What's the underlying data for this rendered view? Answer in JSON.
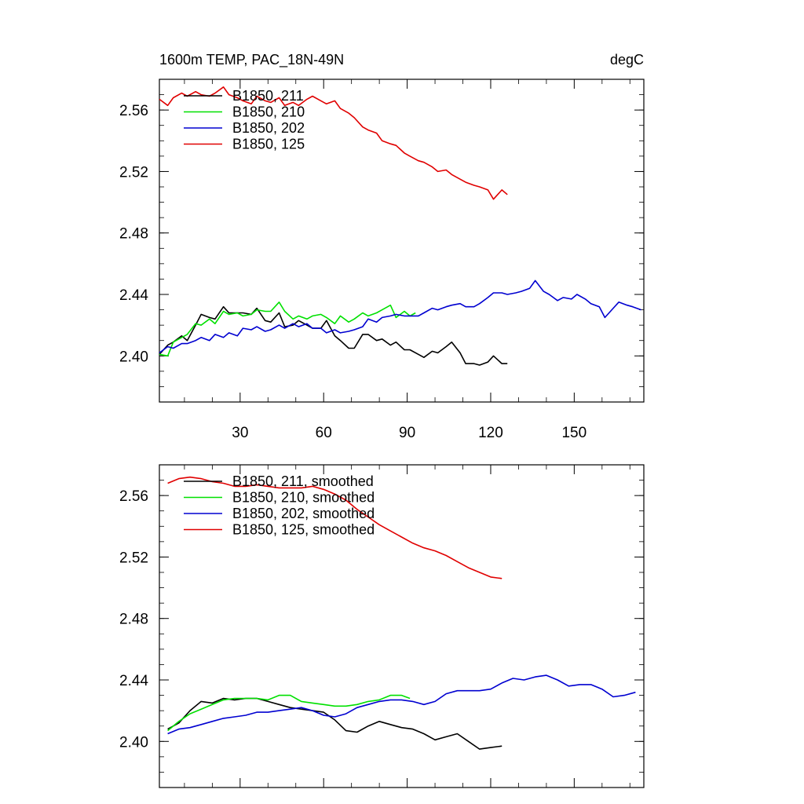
{
  "colors": {
    "run211": "#000000",
    "run210": "#00e000",
    "run202": "#0000d0",
    "run125": "#e00000"
  },
  "header": {
    "title_left": "1600m TEMP, PAC_18N-49N",
    "title_right": "degC"
  },
  "chart_data": [
    {
      "type": "line",
      "title": "1600m TEMP, PAC_18N-49N",
      "unit": "degC",
      "xlim": [
        1,
        175
      ],
      "ylim": [
        2.37,
        2.58
      ],
      "xticks": [
        30,
        60,
        90,
        120,
        150
      ],
      "xtick_labels": [
        "30",
        "60",
        "90",
        "120",
        "150"
      ],
      "yticks": [
        2.4,
        2.44,
        2.48,
        2.52,
        2.56
      ],
      "ytick_labels": [
        "2.40",
        "2.44",
        "2.48",
        "2.52",
        "2.56"
      ],
      "legend_position": "top-left",
      "series": [
        {
          "name": "B1850, 211",
          "color_key": "run211",
          "x": [
            1,
            4,
            6,
            9,
            11,
            14,
            16,
            19,
            21,
            24,
            26,
            29,
            31,
            34,
            36,
            39,
            41,
            44,
            46,
            49,
            51,
            54,
            56,
            59,
            61,
            64,
            66,
            69,
            71,
            74,
            76,
            79,
            81,
            84,
            86,
            89,
            91,
            94,
            96,
            99,
            101,
            104,
            106,
            109,
            111,
            114,
            116,
            119,
            121,
            124,
            126
          ],
          "y": [
            2.401,
            2.407,
            2.409,
            2.413,
            2.41,
            2.42,
            2.427,
            2.425,
            2.424,
            2.432,
            2.428,
            2.428,
            2.428,
            2.427,
            2.431,
            2.423,
            2.422,
            2.428,
            2.419,
            2.42,
            2.423,
            2.42,
            2.418,
            2.418,
            2.423,
            2.413,
            2.41,
            2.405,
            2.405,
            2.414,
            2.414,
            2.41,
            2.411,
            2.407,
            2.409,
            2.404,
            2.404,
            2.401,
            2.399,
            2.403,
            2.402,
            2.406,
            2.409,
            2.402,
            2.395,
            2.395,
            2.394,
            2.396,
            2.4,
            2.395,
            2.395
          ]
        },
        {
          "name": "B1850, 210",
          "color_key": "run210",
          "x": [
            1,
            4,
            6,
            9,
            11,
            14,
            16,
            19,
            21,
            24,
            26,
            29,
            31,
            34,
            36,
            39,
            41,
            44,
            46,
            49,
            51,
            54,
            56,
            59,
            61,
            64,
            66,
            69,
            71,
            74,
            76,
            79,
            81,
            84,
            86,
            89,
            91,
            93
          ],
          "y": [
            2.401,
            2.4,
            2.409,
            2.412,
            2.414,
            2.421,
            2.42,
            2.424,
            2.421,
            2.429,
            2.427,
            2.428,
            2.426,
            2.427,
            2.43,
            2.429,
            2.429,
            2.435,
            2.429,
            2.424,
            2.426,
            2.424,
            2.426,
            2.427,
            2.425,
            2.421,
            2.426,
            2.422,
            2.424,
            2.428,
            2.426,
            2.428,
            2.43,
            2.433,
            2.425,
            2.429,
            2.426,
            2.428
          ]
        },
        {
          "name": "B1850, 202",
          "color_key": "run202",
          "x": [
            1,
            4,
            6,
            9,
            11,
            14,
            16,
            19,
            21,
            24,
            26,
            29,
            31,
            34,
            36,
            39,
            41,
            44,
            46,
            49,
            51,
            54,
            56,
            59,
            61,
            64,
            66,
            69,
            71,
            74,
            76,
            79,
            81,
            84,
            86,
            89,
            91,
            94,
            96,
            99,
            101,
            104,
            106,
            109,
            111,
            114,
            116,
            119,
            121,
            124,
            126,
            129,
            131,
            134,
            136,
            139,
            141,
            144,
            146,
            149,
            151,
            154,
            156,
            159,
            161,
            164,
            166,
            169,
            171,
            174
          ],
          "y": [
            2.402,
            2.406,
            2.405,
            2.408,
            2.408,
            2.41,
            2.412,
            2.41,
            2.414,
            2.412,
            2.415,
            2.413,
            2.418,
            2.417,
            2.419,
            2.416,
            2.417,
            2.42,
            2.418,
            2.421,
            2.419,
            2.421,
            2.418,
            2.418,
            2.415,
            2.417,
            2.415,
            2.416,
            2.417,
            2.419,
            2.424,
            2.422,
            2.425,
            2.426,
            2.427,
            2.426,
            2.426,
            2.426,
            2.428,
            2.431,
            2.43,
            2.432,
            2.433,
            2.434,
            2.432,
            2.432,
            2.434,
            2.438,
            2.441,
            2.441,
            2.44,
            2.441,
            2.442,
            2.444,
            2.449,
            2.442,
            2.44,
            2.436,
            2.438,
            2.437,
            2.44,
            2.437,
            2.434,
            2.432,
            2.425,
            2.431,
            2.435,
            2.433,
            2.432,
            2.43
          ]
        },
        {
          "name": "B1850, 125",
          "color_key": "run125",
          "x": [
            1,
            4,
            6,
            9,
            11,
            14,
            16,
            19,
            21,
            24,
            26,
            29,
            31,
            34,
            36,
            39,
            41,
            44,
            46,
            49,
            51,
            54,
            56,
            59,
            61,
            64,
            66,
            69,
            71,
            74,
            76,
            79,
            81,
            84,
            86,
            89,
            91,
            94,
            96,
            99,
            101,
            104,
            106,
            109,
            111,
            114,
            116,
            119,
            121,
            124,
            126
          ],
          "y": [
            2.567,
            2.563,
            2.568,
            2.571,
            2.569,
            2.572,
            2.57,
            2.569,
            2.571,
            2.575,
            2.57,
            2.568,
            2.566,
            2.564,
            2.569,
            2.566,
            2.565,
            2.568,
            2.563,
            2.565,
            2.563,
            2.567,
            2.569,
            2.566,
            2.564,
            2.566,
            2.561,
            2.558,
            2.555,
            2.549,
            2.547,
            2.545,
            2.54,
            2.538,
            2.537,
            2.532,
            2.53,
            2.527,
            2.526,
            2.523,
            2.52,
            2.521,
            2.518,
            2.515,
            2.513,
            2.511,
            2.51,
            2.508,
            2.502,
            2.508,
            2.505
          ]
        }
      ]
    },
    {
      "type": "line",
      "xlim": [
        1,
        175
      ],
      "ylim": [
        2.37,
        2.58
      ],
      "xticks": [
        30,
        60,
        90,
        120,
        150
      ],
      "yticks": [
        2.4,
        2.44,
        2.48,
        2.52,
        2.56
      ],
      "ytick_labels": [
        "2.40",
        "2.44",
        "2.48",
        "2.52",
        "2.56"
      ],
      "legend_position": "top-left",
      "series": [
        {
          "name": "B1850, 211, smoothed",
          "color_key": "run211",
          "x": [
            4,
            8,
            12,
            16,
            20,
            24,
            28,
            32,
            36,
            40,
            44,
            48,
            52,
            56,
            60,
            64,
            68,
            72,
            76,
            80,
            84,
            88,
            92,
            96,
            100,
            104,
            108,
            112,
            116,
            120,
            124
          ],
          "y": [
            2.408,
            2.412,
            2.42,
            2.426,
            2.425,
            2.428,
            2.427,
            2.428,
            2.428,
            2.426,
            2.424,
            2.422,
            2.421,
            2.42,
            2.419,
            2.414,
            2.407,
            2.406,
            2.41,
            2.413,
            2.411,
            2.409,
            2.408,
            2.405,
            2.401,
            2.403,
            2.405,
            2.4,
            2.395,
            2.396,
            2.397
          ]
        },
        {
          "name": "B1850, 210, smoothed",
          "color_key": "run210",
          "x": [
            4,
            8,
            12,
            16,
            20,
            24,
            28,
            32,
            36,
            40,
            44,
            48,
            52,
            56,
            60,
            64,
            68,
            72,
            76,
            80,
            84,
            88,
            91
          ],
          "y": [
            2.407,
            2.413,
            2.418,
            2.421,
            2.424,
            2.427,
            2.428,
            2.428,
            2.428,
            2.427,
            2.43,
            2.43,
            2.426,
            2.425,
            2.424,
            2.423,
            2.423,
            2.424,
            2.426,
            2.427,
            2.43,
            2.43,
            2.428
          ]
        },
        {
          "name": "B1850, 202, smoothed",
          "color_key": "run202",
          "x": [
            4,
            8,
            12,
            16,
            20,
            24,
            28,
            32,
            36,
            40,
            44,
            48,
            52,
            56,
            60,
            64,
            68,
            72,
            76,
            80,
            84,
            88,
            92,
            96,
            100,
            104,
            108,
            112,
            116,
            120,
            124,
            128,
            132,
            136,
            140,
            144,
            148,
            152,
            156,
            160,
            164,
            168,
            172
          ],
          "y": [
            2.405,
            2.408,
            2.409,
            2.411,
            2.413,
            2.415,
            2.416,
            2.417,
            2.419,
            2.419,
            2.42,
            2.421,
            2.422,
            2.42,
            2.417,
            2.416,
            2.418,
            2.422,
            2.424,
            2.426,
            2.427,
            2.427,
            2.426,
            2.424,
            2.426,
            2.431,
            2.433,
            2.433,
            2.433,
            2.434,
            2.438,
            2.441,
            2.44,
            2.442,
            2.443,
            2.44,
            2.436,
            2.437,
            2.437,
            2.434,
            2.429,
            2.43,
            2.432
          ]
        },
        {
          "name": "B1850, 125, smoothed",
          "color_key": "run125",
          "x": [
            4,
            8,
            12,
            16,
            20,
            24,
            28,
            32,
            36,
            40,
            44,
            48,
            52,
            56,
            60,
            64,
            68,
            72,
            76,
            80,
            84,
            88,
            92,
            96,
            100,
            104,
            108,
            112,
            116,
            120,
            124
          ],
          "y": [
            2.568,
            2.571,
            2.572,
            2.571,
            2.569,
            2.568,
            2.566,
            2.566,
            2.567,
            2.566,
            2.565,
            2.565,
            2.565,
            2.566,
            2.564,
            2.561,
            2.557,
            2.551,
            2.546,
            2.541,
            2.537,
            2.533,
            2.529,
            2.526,
            2.524,
            2.521,
            2.517,
            2.513,
            2.51,
            2.507,
            2.506
          ]
        }
      ]
    }
  ]
}
